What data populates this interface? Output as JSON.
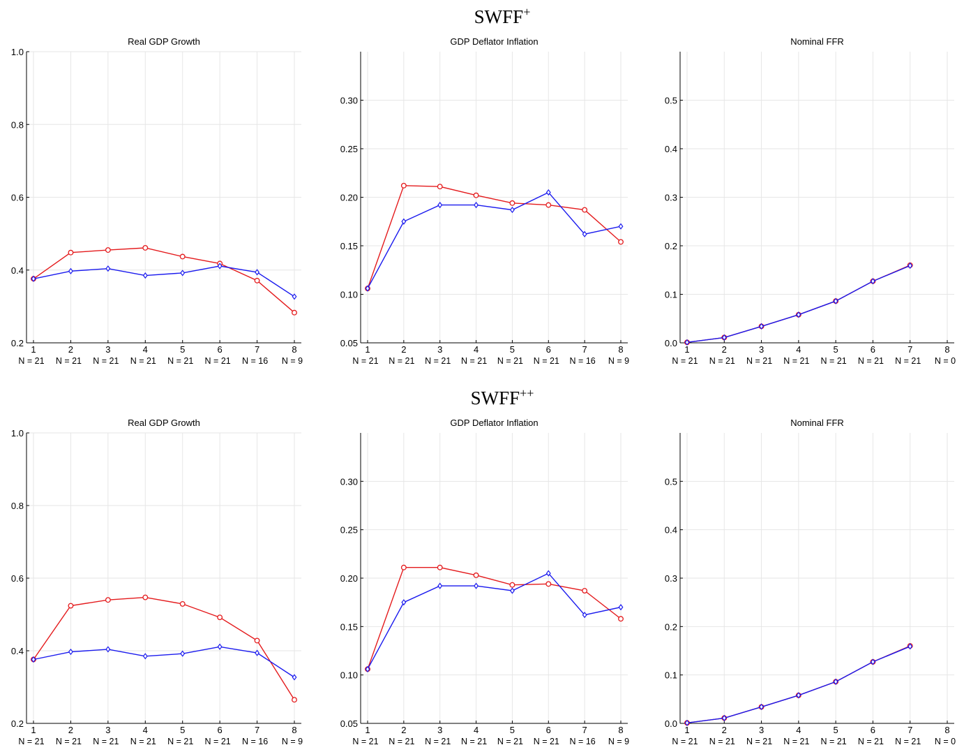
{
  "figure": {
    "groups": [
      {
        "title": "SWFF",
        "title_sup": "+"
      },
      {
        "title": "SWFF",
        "title_sup": "++"
      }
    ]
  },
  "colors": {
    "red": "#e41a1c",
    "blue": "#1a1aee",
    "grid": "#e6e6e6",
    "axis": "#000000"
  },
  "chart_data": [
    {
      "type": "line",
      "group": 0,
      "title": "Real GDP Growth",
      "categories": [
        "1",
        "2",
        "3",
        "4",
        "5",
        "6",
        "7",
        "8"
      ],
      "n_labels": [
        "N = 21",
        "N = 21",
        "N = 21",
        "N = 21",
        "N = 21",
        "N = 21",
        "N = 16",
        "N = 9"
      ],
      "ylim": [
        0.2,
        1.0
      ],
      "yticks": [
        0.2,
        0.4,
        0.6,
        0.8,
        1.0
      ],
      "ytick_labels": [
        "0.2",
        "0.4",
        "0.6",
        "0.8",
        "1.0"
      ],
      "grid": true,
      "series": [
        {
          "color": "red",
          "marker": "circle",
          "values": [
            0.376,
            0.448,
            0.455,
            0.461,
            0.437,
            0.418,
            0.371,
            0.283
          ]
        },
        {
          "color": "blue",
          "marker": "diamond",
          "values": [
            0.376,
            0.397,
            0.404,
            0.385,
            0.392,
            0.411,
            0.394,
            0.327
          ]
        }
      ]
    },
    {
      "type": "line",
      "group": 0,
      "title": "GDP Deflator Inflation",
      "categories": [
        "1",
        "2",
        "3",
        "4",
        "5",
        "6",
        "7",
        "8"
      ],
      "n_labels": [
        "N = 21",
        "N = 21",
        "N = 21",
        "N = 21",
        "N = 21",
        "N = 21",
        "N = 16",
        "N = 9"
      ],
      "ylim": [
        0.05,
        0.35
      ],
      "yticks": [
        0.05,
        0.1,
        0.15,
        0.2,
        0.25,
        0.3
      ],
      "ytick_labels": [
        "0.05",
        "0.10",
        "0.15",
        "0.20",
        "0.25",
        "0.30"
      ],
      "grid": true,
      "series": [
        {
          "color": "red",
          "marker": "circle",
          "values": [
            0.106,
            0.212,
            0.211,
            0.202,
            0.194,
            0.192,
            0.187,
            0.154
          ]
        },
        {
          "color": "blue",
          "marker": "diamond",
          "values": [
            0.106,
            0.175,
            0.192,
            0.192,
            0.187,
            0.205,
            0.162,
            0.17
          ]
        }
      ]
    },
    {
      "type": "line",
      "group": 0,
      "title": "Nominal FFR",
      "categories": [
        "1",
        "2",
        "3",
        "4",
        "5",
        "6",
        "7",
        "8"
      ],
      "n_labels": [
        "N = 21",
        "N = 21",
        "N = 21",
        "N = 21",
        "N = 21",
        "N = 21",
        "N = 21",
        "N = 0"
      ],
      "ylim": [
        0.0,
        0.6
      ],
      "yticks": [
        0.0,
        0.1,
        0.2,
        0.3,
        0.4,
        0.5
      ],
      "ytick_labels": [
        "0.0",
        "0.1",
        "0.2",
        "0.3",
        "0.4",
        "0.5"
      ],
      "grid": true,
      "series": [
        {
          "color": "red",
          "marker": "circle",
          "values": [
            0.001,
            0.011,
            0.034,
            0.058,
            0.086,
            0.127,
            0.16,
            null
          ]
        },
        {
          "color": "blue",
          "marker": "diamond",
          "values": [
            0.001,
            0.011,
            0.034,
            0.058,
            0.086,
            0.127,
            0.159,
            null
          ]
        }
      ]
    },
    {
      "type": "line",
      "group": 1,
      "title": "Real GDP Growth",
      "categories": [
        "1",
        "2",
        "3",
        "4",
        "5",
        "6",
        "7",
        "8"
      ],
      "n_labels": [
        "N = 21",
        "N = 21",
        "N = 21",
        "N = 21",
        "N = 21",
        "N = 21",
        "N = 16",
        "N = 9"
      ],
      "ylim": [
        0.2,
        1.0
      ],
      "yticks": [
        0.2,
        0.4,
        0.6,
        0.8,
        1.0
      ],
      "ytick_labels": [
        "0.2",
        "0.4",
        "0.6",
        "0.8",
        "1.0"
      ],
      "grid": true,
      "series": [
        {
          "color": "red",
          "marker": "circle",
          "values": [
            0.376,
            0.524,
            0.54,
            0.547,
            0.529,
            0.492,
            0.428,
            0.265
          ]
        },
        {
          "color": "blue",
          "marker": "diamond",
          "values": [
            0.376,
            0.397,
            0.404,
            0.385,
            0.392,
            0.411,
            0.394,
            0.327
          ]
        }
      ]
    },
    {
      "type": "line",
      "group": 1,
      "title": "GDP Deflator Inflation",
      "categories": [
        "1",
        "2",
        "3",
        "4",
        "5",
        "6",
        "7",
        "8"
      ],
      "n_labels": [
        "N = 21",
        "N = 21",
        "N = 21",
        "N = 21",
        "N = 21",
        "N = 21",
        "N = 16",
        "N = 9"
      ],
      "ylim": [
        0.05,
        0.35
      ],
      "yticks": [
        0.05,
        0.1,
        0.15,
        0.2,
        0.25,
        0.3
      ],
      "ytick_labels": [
        "0.05",
        "0.10",
        "0.15",
        "0.20",
        "0.25",
        "0.30"
      ],
      "grid": true,
      "series": [
        {
          "color": "red",
          "marker": "circle",
          "values": [
            0.106,
            0.211,
            0.211,
            0.203,
            0.193,
            0.194,
            0.187,
            0.158
          ]
        },
        {
          "color": "blue",
          "marker": "diamond",
          "values": [
            0.106,
            0.175,
            0.192,
            0.192,
            0.187,
            0.205,
            0.162,
            0.17
          ]
        }
      ]
    },
    {
      "type": "line",
      "group": 1,
      "title": "Nominal FFR",
      "categories": [
        "1",
        "2",
        "3",
        "4",
        "5",
        "6",
        "7",
        "8"
      ],
      "n_labels": [
        "N = 21",
        "N = 21",
        "N = 21",
        "N = 21",
        "N = 21",
        "N = 21",
        "N = 21",
        "N = 0"
      ],
      "ylim": [
        0.0,
        0.6
      ],
      "yticks": [
        0.0,
        0.1,
        0.2,
        0.3,
        0.4,
        0.5
      ],
      "ytick_labels": [
        "0.0",
        "0.1",
        "0.2",
        "0.3",
        "0.4",
        "0.5"
      ],
      "grid": true,
      "series": [
        {
          "color": "red",
          "marker": "circle",
          "values": [
            0.001,
            0.011,
            0.034,
            0.058,
            0.086,
            0.127,
            0.16,
            null
          ]
        },
        {
          "color": "blue",
          "marker": "diamond",
          "values": [
            0.001,
            0.011,
            0.034,
            0.058,
            0.086,
            0.127,
            0.159,
            null
          ]
        }
      ]
    }
  ]
}
